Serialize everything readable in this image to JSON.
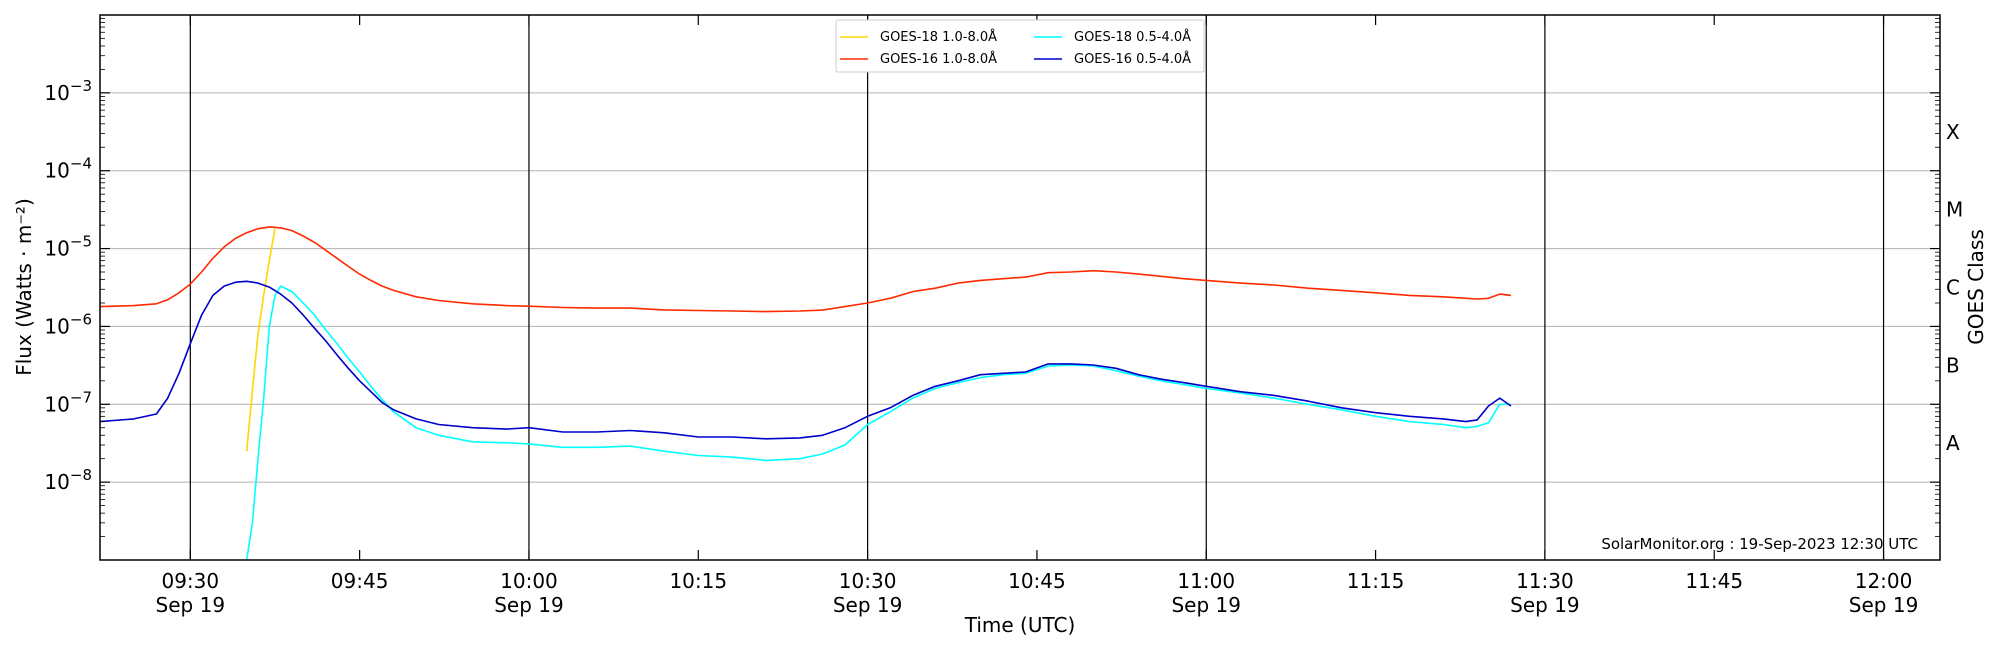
{
  "chart_data": {
    "type": "line",
    "y_scale": "log",
    "ylim": [
      1e-09,
      0.01
    ],
    "xlim": [
      "09:22",
      "12:05"
    ],
    "xlabel": "Time (UTC)",
    "ylabel": "Flux (Watts · m⁻²)",
    "y2label": "GOES Class",
    "x_ticks": [
      {
        "line1": "09:30",
        "line2": "Sep 19",
        "minutes": 570
      },
      {
        "line1": "09:45",
        "line2": "",
        "minutes": 585
      },
      {
        "line1": "10:00",
        "line2": "Sep 19",
        "minutes": 600
      },
      {
        "line1": "10:15",
        "line2": "",
        "minutes": 615
      },
      {
        "line1": "10:30",
        "line2": "Sep 19",
        "minutes": 630
      },
      {
        "line1": "10:45",
        "line2": "",
        "minutes": 645
      },
      {
        "line1": "11:00",
        "line2": "Sep 19",
        "minutes": 660
      },
      {
        "line1": "11:15",
        "line2": "",
        "minutes": 675
      },
      {
        "line1": "11:30",
        "line2": "Sep 19",
        "minutes": 690
      },
      {
        "line1": "11:45",
        "line2": "",
        "minutes": 705
      },
      {
        "line1": "12:00",
        "line2": "Sep 19",
        "minutes": 720
      }
    ],
    "y_ticks": [
      {
        "label": "10",
        "exp": "−8",
        "value": 1e-08
      },
      {
        "label": "10",
        "exp": "−7",
        "value": 1e-07
      },
      {
        "label": "10",
        "exp": "−6",
        "value": 1e-06
      },
      {
        "label": "10",
        "exp": "−5",
        "value": 1e-05
      },
      {
        "label": "10",
        "exp": "−4",
        "value": 0.0001
      },
      {
        "label": "10",
        "exp": "−3",
        "value": 0.001
      }
    ],
    "class_labels": [
      {
        "label": "A",
        "value": 3.16e-08
      },
      {
        "label": "B",
        "value": 3.16e-07
      },
      {
        "label": "C",
        "value": 3.16e-06
      },
      {
        "label": "M",
        "value": 3.16e-05
      },
      {
        "label": "X",
        "value": 0.000316
      }
    ],
    "grid": "horizontal at decades; vertical lines at Sep 19 labeled ticks",
    "legend_position": "top-center",
    "credit": "SolarMonitor.org : 19-Sep-2023 12:30 UTC",
    "series": [
      {
        "name": "GOES-18 1.0-8.0Å",
        "color": "#FFD700",
        "x": [
          "09:35:00",
          "09:35:30",
          "09:36:00",
          "09:36:30",
          "09:37:00",
          "09:37:30"
        ],
        "values": [
          2.5e-08,
          1.5e-07,
          8e-07,
          2.5e-06,
          7e-06,
          1.8e-05
        ]
      },
      {
        "name": "GOES-16 1.0-8.0Å",
        "color": "#FF2A00",
        "x": [
          "09:22",
          "09:25",
          "09:27",
          "09:28",
          "09:29",
          "09:30",
          "09:31",
          "09:32",
          "09:33",
          "09:34",
          "09:35",
          "09:36",
          "09:37",
          "09:38",
          "09:39",
          "09:40",
          "09:41",
          "09:42",
          "09:43",
          "09:44",
          "09:45",
          "09:46",
          "09:47",
          "09:48",
          "09:50",
          "09:52",
          "09:55",
          "09:58",
          "10:00",
          "10:03",
          "10:06",
          "10:09",
          "10:12",
          "10:15",
          "10:18",
          "10:21",
          "10:24",
          "10:26",
          "10:28",
          "10:30",
          "10:32",
          "10:34",
          "10:36",
          "10:38",
          "10:40",
          "10:42",
          "10:44",
          "10:46",
          "10:48",
          "10:50",
          "10:52",
          "10:54",
          "10:56",
          "10:58",
          "11:00",
          "11:03",
          "11:06",
          "11:09",
          "11:12",
          "11:15",
          "11:18",
          "11:21",
          "11:23",
          "11:24",
          "11:25",
          "11:26",
          "11:27"
        ],
        "values": [
          1.8e-06,
          1.85e-06,
          1.95e-06,
          2.2e-06,
          2.7e-06,
          3.5e-06,
          5e-06,
          7.5e-06,
          1.05e-05,
          1.35e-05,
          1.6e-05,
          1.8e-05,
          1.9e-05,
          1.85e-05,
          1.7e-05,
          1.45e-05,
          1.2e-05,
          9.5e-06,
          7.5e-06,
          5.9e-06,
          4.7e-06,
          3.9e-06,
          3.3e-06,
          2.9e-06,
          2.4e-06,
          2.15e-06,
          1.95e-06,
          1.85e-06,
          1.82e-06,
          1.75e-06,
          1.72e-06,
          1.72e-06,
          1.63e-06,
          1.6e-06,
          1.58e-06,
          1.55e-06,
          1.58e-06,
          1.62e-06,
          1.8e-06,
          2e-06,
          2.3e-06,
          2.8e-06,
          3.1e-06,
          3.6e-06,
          3.9e-06,
          4.1e-06,
          4.3e-06,
          4.9e-06,
          5e-06,
          5.2e-06,
          5e-06,
          4.7e-06,
          4.4e-06,
          4.1e-06,
          3.9e-06,
          3.6e-06,
          3.4e-06,
          3.1e-06,
          2.9e-06,
          2.7e-06,
          2.5e-06,
          2.4e-06,
          2.3e-06,
          2.25e-06,
          2.3e-06,
          2.6e-06,
          2.5e-06
        ]
      },
      {
        "name": "GOES-18 0.5-4.0Å",
        "color": "#00FFFF",
        "x": [
          "09:35:00",
          "09:35:30",
          "09:36:00",
          "09:36:30",
          "09:37:00",
          "09:37:30",
          "09:38",
          "09:39",
          "09:40",
          "09:41",
          "09:42",
          "09:43",
          "09:44",
          "09:45",
          "09:46",
          "09:47",
          "09:48",
          "09:50",
          "09:52",
          "09:55",
          "09:58",
          "10:00",
          "10:03",
          "10:06",
          "10:09",
          "10:12",
          "10:15",
          "10:18",
          "10:21",
          "10:24",
          "10:26",
          "10:28",
          "10:30",
          "10:32",
          "10:34",
          "10:36",
          "10:38",
          "10:40",
          "10:42",
          "10:44",
          "10:46",
          "10:48",
          "10:50",
          "10:52",
          "10:54",
          "10:56",
          "10:58",
          "11:00",
          "11:03",
          "11:06",
          "11:09",
          "11:12",
          "11:15",
          "11:18",
          "11:21",
          "11:23",
          "11:24",
          "11:25",
          "11:26",
          "11:27"
        ],
        "values": [
          1e-09,
          3e-09,
          2e-08,
          1.2e-07,
          1e-06,
          2.5e-06,
          3.3e-06,
          2.8e-06,
          2e-06,
          1.4e-06,
          9e-07,
          6e-07,
          3.9e-07,
          2.6e-07,
          1.7e-07,
          1.15e-07,
          8e-08,
          5e-08,
          4e-08,
          3.3e-08,
          3.2e-08,
          3.1e-08,
          2.8e-08,
          2.8e-08,
          2.9e-08,
          2.5e-08,
          2.2e-08,
          2.1e-08,
          1.9e-08,
          2e-08,
          2.3e-08,
          3e-08,
          5.5e-08,
          8e-08,
          1.2e-07,
          1.6e-07,
          1.9e-07,
          2.2e-07,
          2.4e-07,
          2.5e-07,
          3.1e-07,
          3.2e-07,
          3.1e-07,
          2.7e-07,
          2.3e-07,
          2e-07,
          1.8e-07,
          1.6e-07,
          1.4e-07,
          1.2e-07,
          1e-07,
          8.5e-08,
          7e-08,
          6e-08,
          5.5e-08,
          5e-08,
          5.2e-08,
          5.8e-08,
          1e-07,
          1e-07
        ]
      },
      {
        "name": "GOES-16 0.5-4.0Å",
        "color": "#0000CC",
        "x": [
          "09:22",
          "09:25",
          "09:27",
          "09:28",
          "09:29",
          "09:30",
          "09:31",
          "09:32",
          "09:33",
          "09:34",
          "09:35",
          "09:36",
          "09:37",
          "09:38",
          "09:39",
          "09:40",
          "09:41",
          "09:42",
          "09:43",
          "09:44",
          "09:45",
          "09:46",
          "09:47",
          "09:48",
          "09:50",
          "09:52",
          "09:55",
          "09:58",
          "10:00",
          "10:03",
          "10:06",
          "10:09",
          "10:12",
          "10:15",
          "10:18",
          "10:21",
          "10:24",
          "10:26",
          "10:28",
          "10:30",
          "10:32",
          "10:34",
          "10:36",
          "10:38",
          "10:40",
          "10:42",
          "10:44",
          "10:46",
          "10:48",
          "10:50",
          "10:52",
          "10:54",
          "10:56",
          "10:58",
          "11:00",
          "11:03",
          "11:06",
          "11:09",
          "11:12",
          "11:15",
          "11:18",
          "11:21",
          "11:23",
          "11:24",
          "11:25",
          "11:26",
          "11:27"
        ],
        "values": [
          6e-08,
          6.5e-08,
          7.5e-08,
          1.2e-07,
          2.5e-07,
          6e-07,
          1.4e-06,
          2.5e-06,
          3.3e-06,
          3.7e-06,
          3.8e-06,
          3.6e-06,
          3.2e-06,
          2.6e-06,
          2e-06,
          1.4e-06,
          9.5e-07,
          6.5e-07,
          4.3e-07,
          2.9e-07,
          2e-07,
          1.45e-07,
          1.05e-07,
          8.5e-08,
          6.5e-08,
          5.5e-08,
          5e-08,
          4.8e-08,
          5e-08,
          4.4e-08,
          4.4e-08,
          4.6e-08,
          4.3e-08,
          3.8e-08,
          3.8e-08,
          3.6e-08,
          3.7e-08,
          4e-08,
          5e-08,
          7e-08,
          9e-08,
          1.3e-07,
          1.7e-07,
          2e-07,
          2.4e-07,
          2.5e-07,
          2.6e-07,
          3.3e-07,
          3.3e-07,
          3.2e-07,
          2.9e-07,
          2.4e-07,
          2.1e-07,
          1.9e-07,
          1.7e-07,
          1.45e-07,
          1.3e-07,
          1.1e-07,
          9e-08,
          7.8e-08,
          7e-08,
          6.5e-08,
          6e-08,
          6.3e-08,
          9.5e-08,
          1.2e-07,
          9.5e-08
        ]
      }
    ]
  }
}
